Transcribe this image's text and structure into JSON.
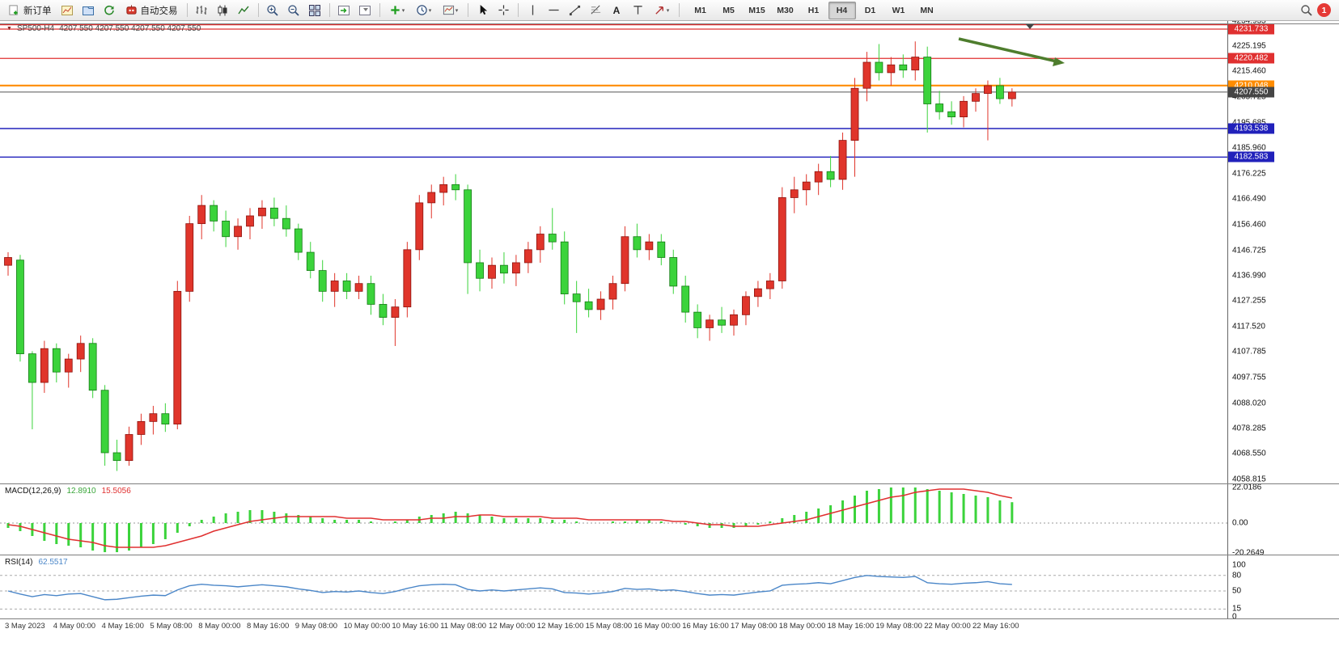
{
  "toolbar": {
    "new_order_label": "新订单",
    "auto_trading_label": "自动交易",
    "text_tool_label": "A",
    "timeframes": [
      "M1",
      "M5",
      "M15",
      "M30",
      "H1",
      "H4",
      "D1",
      "W1",
      "MN"
    ],
    "active_timeframe": "H4",
    "notification_badge": "1"
  },
  "chart": {
    "symbol": "SP500-H4",
    "ohlc": "4207.550 4207.550 4207.550 4207.550"
  },
  "chart_data": {
    "type": "candlestick",
    "title": "SP500-H4",
    "timeframe": "H4",
    "up_color": "#e0352b",
    "down_color": "#3bd33b",
    "annotation": {
      "type": "arrow",
      "color": "#4e7d2d"
    },
    "price_lines": [
      {
        "price": 4233.4,
        "label": "",
        "color": "#e03030",
        "width": 1.2
      },
      {
        "price": 4231.733,
        "label": "4231.733",
        "color": "#e03030",
        "width": 1.2
      },
      {
        "price": 4220.482,
        "label": "4220.482",
        "color": "#e03030",
        "width": 1.2
      },
      {
        "price": 4210.048,
        "label": "4210.048",
        "color": "#ff8c00",
        "width": 2.2
      },
      {
        "price": 4207.55,
        "label": "4207.550",
        "color": "#555555",
        "width": 1,
        "badge": "#454545"
      },
      {
        "price": 4193.538,
        "label": "4193.538",
        "color": "#2121bb",
        "width": 1.4
      },
      {
        "price": 4182.583,
        "label": "4182.583",
        "color": "#2121bb",
        "width": 1.4
      }
    ],
    "price_axis_labels": [
      "4234.935",
      "4225.195",
      "4215.460",
      "4205.725",
      "4195.685",
      "4185.960",
      "4176.225",
      "4166.490",
      "4156.460",
      "4146.725",
      "4136.990",
      "4127.255",
      "4117.520",
      "4107.785",
      "4097.755",
      "4088.020",
      "4078.285",
      "4068.550",
      "4058.815"
    ],
    "time_axis_labels": [
      "3 May 2023",
      "4 May 00:00",
      "4 May 16:00",
      "5 May 08:00",
      "8 May 00:00",
      "8 May 16:00",
      "9 May 08:00",
      "10 May 00:00",
      "10 May 16:00",
      "11 May 08:00",
      "12 May 00:00",
      "12 May 16:00",
      "15 May 08:00",
      "16 May 00:00",
      "16 May 16:00",
      "17 May 08:00",
      "18 May 00:00",
      "18 May 16:00",
      "19 May 08:00",
      "22 May 00:00",
      "22 May 16:00"
    ],
    "candles": [
      [
        4141,
        4146,
        4137,
        4144
      ],
      [
        4143,
        4145,
        4104,
        4107
      ],
      [
        4107,
        4108,
        4078,
        4096
      ],
      [
        4096,
        4112,
        4092,
        4109
      ],
      [
        4109,
        4111,
        4096,
        4100
      ],
      [
        4100,
        4107,
        4094,
        4105
      ],
      [
        4105,
        4114,
        4100,
        4111
      ],
      [
        4111,
        4113,
        4090,
        4093
      ],
      [
        4093,
        4095,
        4064,
        4069
      ],
      [
        4069,
        4074,
        4062,
        4066
      ],
      [
        4066,
        4079,
        4064,
        4076
      ],
      [
        4076,
        4084,
        4072,
        4081
      ],
      [
        4081,
        4087,
        4076,
        4084
      ],
      [
        4084,
        4088,
        4077,
        4080
      ],
      [
        4080,
        4135,
        4078,
        4131
      ],
      [
        4131,
        4160,
        4127,
        4157
      ],
      [
        4157,
        4168,
        4151,
        4164
      ],
      [
        4164,
        4166,
        4154,
        4158
      ],
      [
        4158,
        4162,
        4148,
        4152
      ],
      [
        4152,
        4159,
        4147,
        4156
      ],
      [
        4156,
        4163,
        4151,
        4160
      ],
      [
        4160,
        4166,
        4155,
        4163
      ],
      [
        4163,
        4167,
        4156,
        4159
      ],
      [
        4159,
        4164,
        4152,
        4155
      ],
      [
        4155,
        4157,
        4143,
        4146
      ],
      [
        4146,
        4150,
        4136,
        4139
      ],
      [
        4139,
        4143,
        4127,
        4131
      ],
      [
        4131,
        4138,
        4125,
        4135
      ],
      [
        4135,
        4138,
        4128,
        4131
      ],
      [
        4131,
        4137,
        4128,
        4134
      ],
      [
        4134,
        4137,
        4122,
        4126
      ],
      [
        4126,
        4130,
        4118,
        4121
      ],
      [
        4121,
        4128,
        4110,
        4125
      ],
      [
        4125,
        4150,
        4121,
        4147
      ],
      [
        4147,
        4168,
        4143,
        4165
      ],
      [
        4165,
        4172,
        4159,
        4169
      ],
      [
        4169,
        4175,
        4164,
        4172
      ],
      [
        4172,
        4176,
        4166,
        4170
      ],
      [
        4170,
        4172,
        4130,
        4142
      ],
      [
        4142,
        4147,
        4131,
        4136
      ],
      [
        4136,
        4144,
        4132,
        4141
      ],
      [
        4141,
        4146,
        4134,
        4138
      ],
      [
        4138,
        4145,
        4133,
        4142
      ],
      [
        4142,
        4150,
        4138,
        4147
      ],
      [
        4147,
        4156,
        4142,
        4153
      ],
      [
        4153,
        4163,
        4147,
        4150
      ],
      [
        4150,
        4154,
        4126,
        4130
      ],
      [
        4130,
        4135,
        4115,
        4127
      ],
      [
        4127,
        4132,
        4121,
        4124
      ],
      [
        4124,
        4131,
        4120,
        4128
      ],
      [
        4128,
        4137,
        4124,
        4134
      ],
      [
        4134,
        4156,
        4131,
        4152
      ],
      [
        4152,
        4157,
        4144,
        4147
      ],
      [
        4147,
        4153,
        4143,
        4150
      ],
      [
        4150,
        4153,
        4141,
        4144
      ],
      [
        4144,
        4147,
        4130,
        4133
      ],
      [
        4133,
        4137,
        4119,
        4123
      ],
      [
        4123,
        4126,
        4113,
        4117
      ],
      [
        4117,
        4122,
        4112,
        4120
      ],
      [
        4120,
        4125,
        4115,
        4118
      ],
      [
        4118,
        4124,
        4114,
        4122
      ],
      [
        4122,
        4131,
        4118,
        4129
      ],
      [
        4129,
        4135,
        4125,
        4132
      ],
      [
        4132,
        4138,
        4128,
        4135
      ],
      [
        4135,
        4171,
        4132,
        4167
      ],
      [
        4167,
        4175,
        4161,
        4170
      ],
      [
        4170,
        4176,
        4164,
        4173
      ],
      [
        4173,
        4180,
        4168,
        4177
      ],
      [
        4177,
        4183,
        4171,
        4174
      ],
      [
        4174,
        4192,
        4170,
        4189
      ],
      [
        4189,
        4213,
        4175,
        4209
      ],
      [
        4209,
        4223,
        4204,
        4219
      ],
      [
        4219,
        4226,
        4212,
        4215
      ],
      [
        4215,
        4221,
        4210,
        4218
      ],
      [
        4218,
        4222,
        4213,
        4216
      ],
      [
        4216,
        4227,
        4212,
        4221
      ],
      [
        4221,
        4225,
        4192,
        4203
      ],
      [
        4203,
        4208,
        4197,
        4200
      ],
      [
        4200,
        4204,
        4195,
        4198
      ],
      [
        4198,
        4206,
        4194,
        4204
      ],
      [
        4204,
        4209,
        4200,
        4207
      ],
      [
        4207,
        4212,
        4189,
        4210
      ],
      [
        4210,
        4213,
        4203,
        4205
      ],
      [
        4205,
        4209,
        4202,
        4207.55
      ]
    ],
    "macd": {
      "label": "MACD(12,26,9)",
      "value": "12.8910",
      "signal_value": "15.5056",
      "axis": [
        "22.0186",
        "0.00",
        "-20.2649"
      ],
      "hist": [
        -3,
        -5,
        -8,
        -11,
        -13,
        -14,
        -15,
        -17,
        -18,
        -18,
        -17,
        -15,
        -13,
        -10,
        -6,
        -2,
        2,
        4,
        6,
        7,
        8,
        8,
        7,
        6,
        5,
        4,
        3,
        2,
        2,
        2,
        1,
        0,
        1,
        2,
        4,
        5,
        6,
        7,
        6,
        5,
        4,
        3,
        3,
        3,
        3,
        2,
        2,
        1,
        0,
        0,
        1,
        1,
        2,
        2,
        1,
        0,
        -1,
        -2,
        -3,
        -3,
        -3,
        -2,
        -1,
        1,
        3,
        5,
        7,
        9,
        11,
        14,
        17,
        20,
        21,
        22,
        22,
        22,
        21,
        20,
        19,
        18,
        17,
        16,
        14,
        12.9
      ],
      "signal": [
        -1,
        -2,
        -4,
        -6,
        -8,
        -10,
        -11,
        -12,
        -14,
        -15,
        -15,
        -15,
        -15,
        -14,
        -12,
        -10,
        -8,
        -5,
        -3,
        -1,
        1,
        2,
        3,
        4,
        4,
        4,
        4,
        4,
        3,
        3,
        3,
        2,
        2,
        2,
        2,
        3,
        3,
        4,
        4,
        5,
        5,
        4,
        4,
        4,
        4,
        3,
        3,
        3,
        2,
        2,
        2,
        2,
        2,
        2,
        2,
        1,
        1,
        0,
        -1,
        -1,
        -2,
        -2,
        -2,
        -1,
        0,
        1,
        2,
        4,
        6,
        8,
        10,
        12,
        14,
        16,
        17,
        19,
        20,
        21,
        21,
        21,
        20,
        19,
        17,
        15.5
      ]
    },
    "rsi": {
      "label": "RSI(14)",
      "value": "62.5517",
      "axis": [
        "100",
        "80",
        "50",
        "15",
        "0"
      ],
      "levels": [
        80,
        50,
        15
      ],
      "values": [
        50,
        44,
        39,
        43,
        41,
        44,
        45,
        39,
        33,
        34,
        37,
        40,
        42,
        41,
        52,
        60,
        63,
        61,
        60,
        58,
        60,
        62,
        60,
        58,
        54,
        51,
        47,
        49,
        48,
        50,
        47,
        45,
        49,
        55,
        60,
        62,
        63,
        62,
        53,
        50,
        52,
        50,
        52,
        54,
        56,
        54,
        47,
        46,
        44,
        46,
        49,
        55,
        53,
        54,
        51,
        52,
        49,
        45,
        42,
        43,
        42,
        45,
        48,
        50,
        61,
        63,
        64,
        66,
        64,
        70,
        76,
        80,
        78,
        77,
        76,
        78,
        66,
        64,
        63,
        65,
        66,
        68,
        64,
        62.55
      ]
    }
  }
}
